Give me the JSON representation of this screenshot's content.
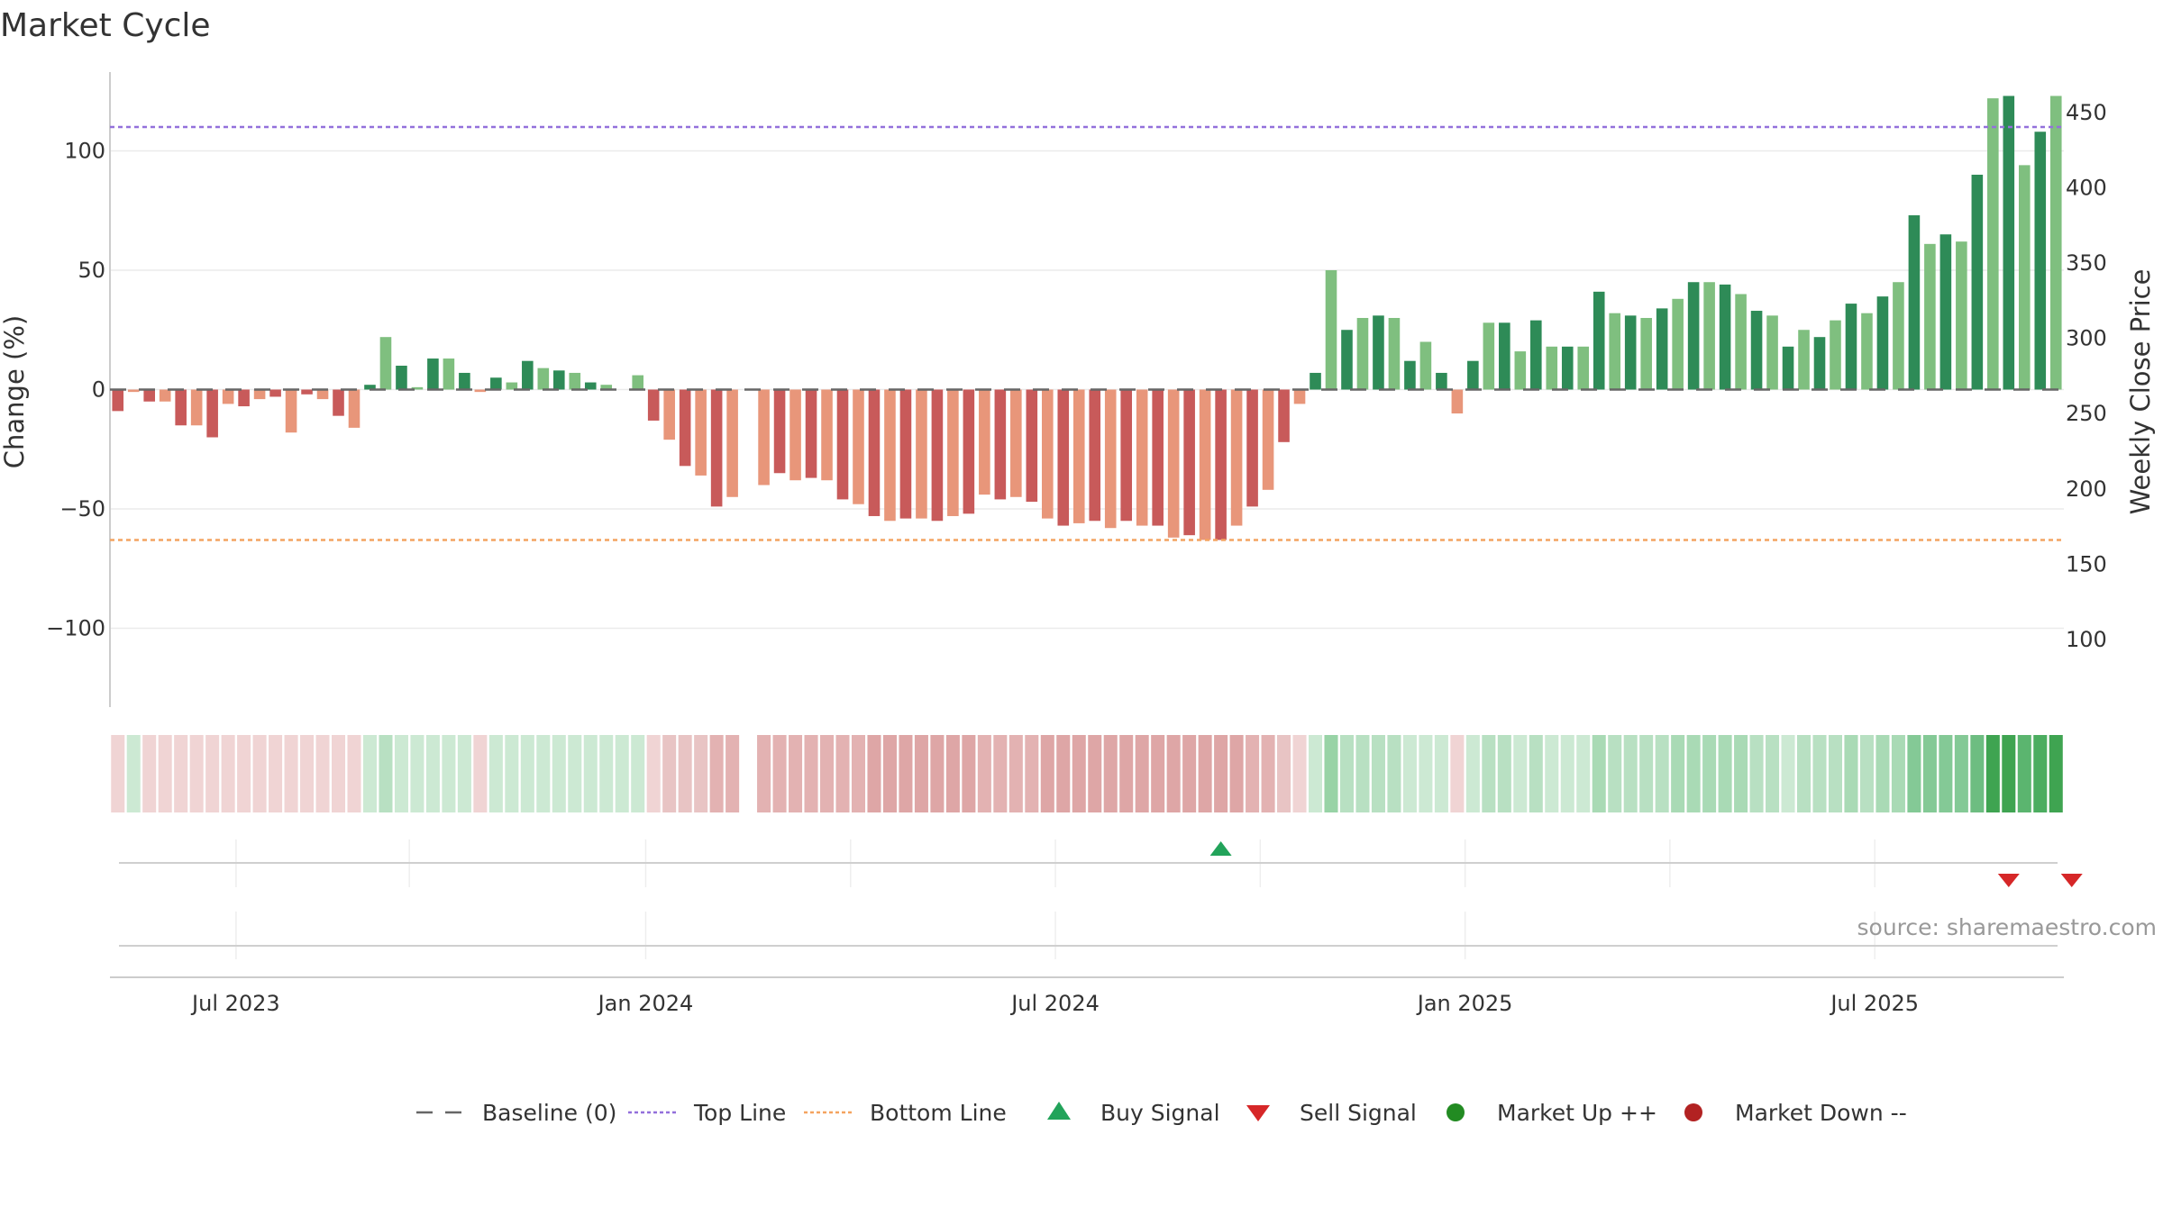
{
  "chart_data": {
    "type": "bar",
    "title": "Market Cycle",
    "ylabel": "Change (%)",
    "y2label": "Weekly Close Price",
    "ylim": [
      -133,
      133
    ],
    "y_ticks": [
      100,
      50,
      0,
      -50,
      -100
    ],
    "y_tick_labels": [
      "100",
      "50",
      "0",
      "−50",
      "−100"
    ],
    "y2lim": [
      55,
      477
    ],
    "y2_ticks": [
      450,
      400,
      350,
      300,
      250,
      200,
      150,
      100
    ],
    "y2_tick_labels": [
      "450",
      "400",
      "350",
      "300",
      "250",
      "200",
      "150",
      "100"
    ],
    "x_tick_labels": [
      "Jul 2023",
      "Jan 2024",
      "Jul 2024",
      "Jan 2025",
      "Jul 2025"
    ],
    "x_tick_weeks": [
      8,
      34,
      60,
      86,
      112
    ],
    "grid": true,
    "top_line": 110,
    "bottom_line": -63,
    "baseline": 0,
    "values": [
      -9,
      -1,
      -5,
      -5,
      -15,
      -15,
      -20,
      -6,
      -7,
      -4,
      -3,
      -18,
      -2,
      -4,
      -11,
      -16,
      2,
      22,
      10,
      1,
      13,
      13,
      7,
      -1,
      5,
      3,
      12,
      9,
      8,
      7,
      3,
      2,
      0,
      6,
      -13,
      -21,
      -32,
      -36,
      -49,
      -45,
      0,
      -40,
      -35,
      -38,
      -37,
      -38,
      -46,
      -48,
      -53,
      -55,
      -54,
      -54,
      -55,
      -53,
      -52,
      -44,
      -46,
      -45,
      -47,
      -54,
      -57,
      -56,
      -55,
      -58,
      -55,
      -57,
      -57,
      -62,
      -61,
      -63,
      -63,
      -57,
      -49,
      -42,
      -22,
      -6,
      7,
      50,
      25,
      30,
      31,
      30,
      12,
      20,
      7,
      -10,
      12,
      28,
      28,
      16,
      29,
      18,
      18,
      18,
      41,
      32,
      31,
      30,
      34,
      38,
      45,
      45,
      44,
      40,
      33,
      31,
      18,
      25,
      22,
      29,
      36,
      32,
      39,
      45,
      73,
      61,
      65,
      62,
      90,
      122,
      123,
      94,
      108,
      123
    ],
    "signal_cells": [
      "#f0d4d4",
      "#cce9d3",
      "#f0d4d4",
      "#f0d4d4",
      "#f0d4d4",
      "#f0d4d4",
      "#f0d4d4",
      "#f0d4d4",
      "#f0d4d4",
      "#f0d4d4",
      "#f0d4d4",
      "#f0d4d4",
      "#f0d4d4",
      "#f0d4d4",
      "#f0d4d4",
      "#f0d4d4",
      "#cce9d3",
      "#b8e0c2",
      "#cce9d3",
      "#cce9d3",
      "#cce9d3",
      "#cce9d3",
      "#cce9d3",
      "#f0d4d4",
      "#cce9d3",
      "#cce9d3",
      "#cce9d3",
      "#cce9d3",
      "#cce9d3",
      "#cce9d3",
      "#cce9d3",
      "#cce9d3",
      "#cce9d3",
      "#cce9d3",
      "#f0d4d4",
      "#e8c4c4",
      "#e8c4c4",
      "#e8c4c4",
      "#e3b2b2",
      "#e3b2b2",
      "",
      "#e3b2b2",
      "#e3b2b2",
      "#e3b2b2",
      "#e3b2b2",
      "#e3b2b2",
      "#e3b2b2",
      "#e3b2b2",
      "#dea6a6",
      "#dea6a6",
      "#dea6a6",
      "#dea6a6",
      "#dea6a6",
      "#dea6a6",
      "#dea6a6",
      "#e3b2b2",
      "#e3b2b2",
      "#e3b2b2",
      "#e3b2b2",
      "#dea6a6",
      "#dea6a6",
      "#dea6a6",
      "#dea6a6",
      "#dea6a6",
      "#dea6a6",
      "#dea6a6",
      "#dea6a6",
      "#dea6a6",
      "#dea6a6",
      "#dea6a6",
      "#dea6a6",
      "#dea6a6",
      "#e3b2b2",
      "#e3b2b2",
      "#e8c4c4",
      "#f0d4d4",
      "#cce9d3",
      "#98d3a6",
      "#b8e0c2",
      "#b8e0c2",
      "#b8e0c2",
      "#b8e0c2",
      "#cce9d3",
      "#cce9d3",
      "#cce9d3",
      "#f0d4d4",
      "#cce9d3",
      "#b8e0c2",
      "#b8e0c2",
      "#cce9d3",
      "#b8e0c2",
      "#cce9d3",
      "#cce9d3",
      "#cce9d3",
      "#a9dab5",
      "#b8e0c2",
      "#b8e0c2",
      "#b8e0c2",
      "#b8e0c2",
      "#a9dab5",
      "#a9dab5",
      "#a9dab5",
      "#a9dab5",
      "#a9dab5",
      "#b8e0c2",
      "#b8e0c2",
      "#cce9d3",
      "#b8e0c2",
      "#b8e0c2",
      "#b8e0c2",
      "#a9dab5",
      "#b8e0c2",
      "#a9dab5",
      "#a9dab5",
      "#84c996",
      "#84c996",
      "#84c996",
      "#84c996",
      "#6dbd81",
      "#3fa451",
      "#3fa451",
      "#5bb56f",
      "#4cad60",
      "#3fa451"
    ],
    "buy_signals": [
      70
    ],
    "sell_signals": [
      120,
      124
    ],
    "legend": [
      {
        "label": "Baseline (0)",
        "marker": "dash-gray"
      },
      {
        "label": "Top Line",
        "marker": "dotted-purple"
      },
      {
        "label": "Bottom Line",
        "marker": "dotted-orange"
      },
      {
        "label": "Buy Signal",
        "marker": "triangle-up-green"
      },
      {
        "label": "Sell Signal",
        "marker": "triangle-down-red"
      },
      {
        "label": "Market Up ++",
        "marker": "circle-green"
      },
      {
        "label": "Market Down --",
        "marker": "circle-red"
      }
    ],
    "legend_position": "bottom-center",
    "source": "source: sharemaestro.com"
  },
  "colors": {
    "bar_pos_strong": "#2e8b57",
    "bar_pos_light": "#7fbf7f",
    "bar_neg_strong": "#c85a5a",
    "bar_neg_light": "#e8967a",
    "top_line": "#9370db",
    "bottom_line": "#f4a460",
    "buy": "#22a35a",
    "sell": "#d62728",
    "market_up": "#228b22",
    "market_down": "#b22222",
    "baseline": "#666666",
    "grid": "#ebebeb",
    "axis": "#cccccc"
  }
}
